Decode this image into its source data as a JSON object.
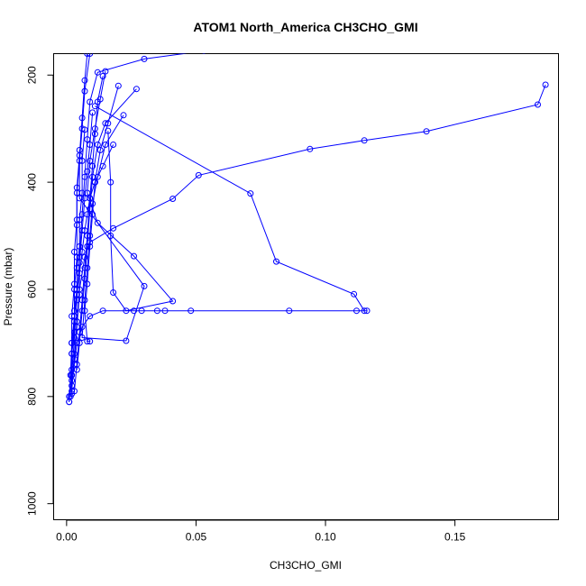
{
  "chart_data": {
    "type": "line",
    "title": "ATOM1 North_America CH3CHO_GMI",
    "xlabel": "CH3CHO_GMI",
    "ylabel": "Pressure (mbar)",
    "xlim": [
      -0.005,
      0.19
    ],
    "ylim": [
      1030,
      160
    ],
    "y_reversed": true,
    "x_ticks": [
      0.0,
      0.05,
      0.1,
      0.15
    ],
    "x_tick_labels": [
      "0.00",
      "0.05",
      "0.10",
      "0.15"
    ],
    "y_ticks": [
      200,
      400,
      600,
      800,
      1000
    ],
    "y_tick_labels": [
      "200",
      "400",
      "600",
      "800",
      "1000"
    ],
    "color": "#0000ff",
    "series": [
      {
        "points": [
          [
            0.009,
            160
          ],
          [
            0.007,
            230
          ],
          [
            0.006,
            300
          ],
          [
            0.005,
            360
          ],
          [
            0.004,
            420
          ],
          [
            0.004,
            480
          ],
          [
            0.004,
            540
          ],
          [
            0.003,
            600
          ],
          [
            0.003,
            660
          ],
          [
            0.002,
            720
          ],
          [
            0.002,
            770
          ],
          [
            0.001,
            810
          ]
        ]
      },
      {
        "points": [
          [
            0.008,
            160
          ],
          [
            0.007,
            210
          ],
          [
            0.006,
            280
          ],
          [
            0.005,
            350
          ],
          [
            0.004,
            410
          ],
          [
            0.004,
            470
          ],
          [
            0.003,
            530
          ],
          [
            0.003,
            590
          ],
          [
            0.002,
            650
          ],
          [
            0.002,
            700
          ],
          [
            0.0015,
            760
          ],
          [
            0.0015,
            800
          ]
        ]
      },
      {
        "points": [
          [
            0.053,
            155
          ],
          [
            0.03,
            170
          ],
          [
            0.012,
            195
          ],
          [
            0.009,
            250
          ],
          [
            0.008,
            320
          ],
          [
            0.007,
            390
          ],
          [
            0.006,
            460
          ],
          [
            0.005,
            540
          ],
          [
            0.004,
            620
          ],
          [
            0.003,
            690
          ],
          [
            0.002,
            760
          ],
          [
            0.002,
            795
          ]
        ]
      },
      {
        "points": [
          [
            0.185,
            218
          ],
          [
            0.182,
            255
          ],
          [
            0.139,
            305
          ],
          [
            0.115,
            322
          ],
          [
            0.094,
            338
          ],
          [
            0.051,
            387
          ],
          [
            0.041,
            431
          ],
          [
            0.018,
            486
          ],
          [
            0.009,
            512
          ],
          [
            0.007,
            540
          ],
          [
            0.005,
            600
          ],
          [
            0.004,
            660
          ],
          [
            0.003,
            720
          ],
          [
            0.002,
            780
          ]
        ]
      },
      {
        "points": [
          [
            0.011,
            258
          ],
          [
            0.071,
            421
          ],
          [
            0.081,
            548
          ],
          [
            0.111,
            609
          ],
          [
            0.115,
            640
          ],
          [
            0.116,
            640
          ],
          [
            0.112,
            640
          ],
          [
            0.086,
            640
          ],
          [
            0.048,
            640
          ],
          [
            0.038,
            640
          ],
          [
            0.035,
            640
          ],
          [
            0.029,
            640
          ],
          [
            0.026,
            640
          ],
          [
            0.014,
            640
          ],
          [
            0.009,
            650
          ],
          [
            0.006,
            670
          ],
          [
            0.004,
            700
          ],
          [
            0.003,
            740
          ]
        ]
      },
      {
        "points": [
          [
            0.015,
            193
          ],
          [
            0.013,
            245
          ],
          [
            0.011,
            300
          ],
          [
            0.009,
            360
          ],
          [
            0.008,
            420
          ],
          [
            0.012,
            476
          ],
          [
            0.026,
            538
          ],
          [
            0.041,
            622
          ],
          [
            0.023,
            640
          ],
          [
            0.018,
            606
          ],
          [
            0.017,
            500
          ],
          [
            0.017,
            400
          ],
          [
            0.016,
            304
          ]
        ]
      },
      {
        "points": [
          [
            0.027,
            226
          ],
          [
            0.015,
            290
          ],
          [
            0.012,
            330
          ],
          [
            0.01,
            390
          ],
          [
            0.009,
            450
          ],
          [
            0.008,
            520
          ],
          [
            0.007,
            580
          ],
          [
            0.006,
            640
          ],
          [
            0.005,
            700
          ],
          [
            0.004,
            750
          ]
        ]
      },
      {
        "points": [
          [
            0.02,
            220
          ],
          [
            0.016,
            290
          ],
          [
            0.013,
            340
          ],
          [
            0.011,
            400
          ],
          [
            0.01,
            460
          ],
          [
            0.009,
            520
          ],
          [
            0.008,
            590
          ],
          [
            0.007,
            640
          ],
          [
            0.008,
            697
          ],
          [
            0.009,
            697
          ]
        ]
      },
      {
        "points": [
          [
            0.022,
            275
          ],
          [
            0.015,
            330
          ],
          [
            0.012,
            390
          ],
          [
            0.01,
            440
          ],
          [
            0.009,
            500
          ],
          [
            0.008,
            560
          ],
          [
            0.007,
            620
          ],
          [
            0.006,
            690
          ],
          [
            0.023,
            696
          ],
          [
            0.03,
            594
          ],
          [
            0.005,
            430
          ],
          [
            0.005,
            340
          ]
        ]
      },
      {
        "points": [
          [
            0.014,
            202
          ],
          [
            0.012,
            250
          ],
          [
            0.011,
            310
          ],
          [
            0.01,
            370
          ],
          [
            0.009,
            430
          ],
          [
            0.008,
            500
          ],
          [
            0.007,
            560
          ],
          [
            0.006,
            620
          ],
          [
            0.005,
            680
          ],
          [
            0.004,
            740
          ],
          [
            0.003,
            790
          ]
        ]
      },
      {
        "points": [
          [
            0.018,
            330
          ],
          [
            0.014,
            370
          ],
          [
            0.011,
            400
          ],
          [
            0.009,
            430
          ],
          [
            0.008,
            460
          ],
          [
            0.007,
            490
          ],
          [
            0.006,
            530
          ],
          [
            0.005,
            570
          ],
          [
            0.004,
            610
          ],
          [
            0.003,
            650
          ],
          [
            0.002,
            700
          ],
          [
            0.002,
            750
          ],
          [
            0.001,
            800
          ],
          [
            0.001,
            810
          ]
        ]
      },
      {
        "points": [
          [
            0.007,
            302
          ],
          [
            0.006,
            360
          ],
          [
            0.006,
            420
          ],
          [
            0.005,
            470
          ],
          [
            0.005,
            520
          ],
          [
            0.004,
            560
          ],
          [
            0.004,
            600
          ],
          [
            0.003,
            640
          ],
          [
            0.003,
            680
          ],
          [
            0.002,
            720
          ],
          [
            0.002,
            760
          ]
        ]
      },
      {
        "points": [
          [
            0.01,
            270
          ],
          [
            0.009,
            330
          ],
          [
            0.008,
            380
          ],
          [
            0.007,
            430
          ],
          [
            0.006,
            490
          ],
          [
            0.005,
            550
          ],
          [
            0.005,
            610
          ],
          [
            0.004,
            670
          ],
          [
            0.003,
            730
          ],
          [
            0.002,
            790
          ]
        ]
      }
    ]
  }
}
